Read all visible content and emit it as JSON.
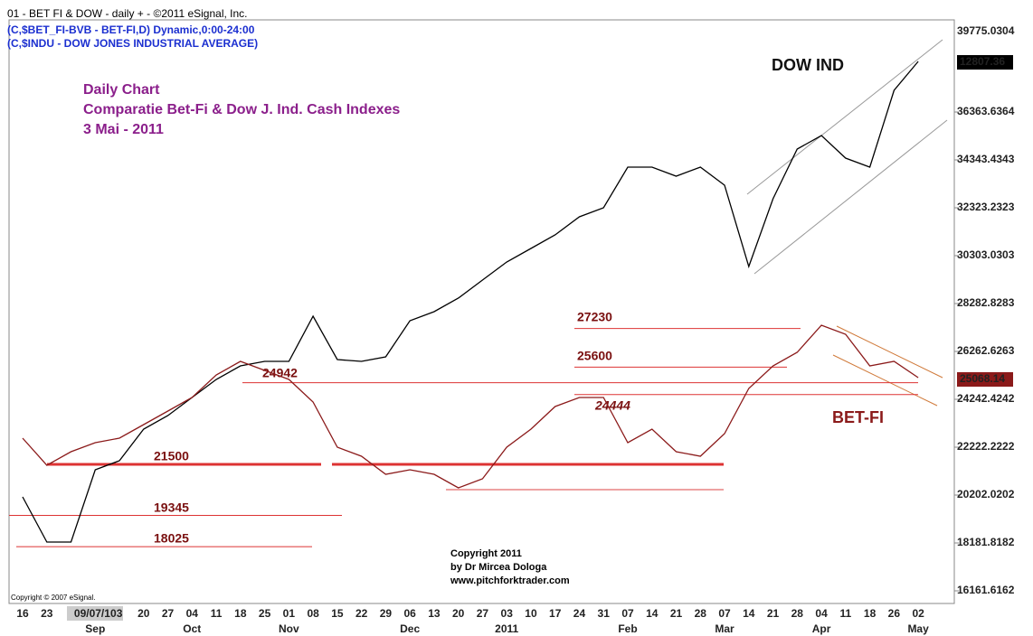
{
  "header": [
    "01 - BET FI & DOW -  daily + - ©2011 eSignal, Inc.",
    "(C,$BET_FI-BVB - BET-FI,D) Dynamic,0:00-24:00",
    "(C,$INDU - DOW JONES INDUSTRIAL AVERAGE)"
  ],
  "chart_data": {
    "type": "line",
    "title": "Daily Chart",
    "subtitle": [
      "Comparatie Bet-Fi & Dow J. Ind. Cash Indexes",
      "3 Mai - 2011"
    ],
    "categories": [
      "16",
      "23",
      null,
      "09/07/10",
      "3",
      "20",
      "27",
      "04",
      "11",
      "18",
      "25",
      "01",
      "08",
      "15",
      "22",
      "29",
      "06",
      "13",
      "20",
      "27",
      "03",
      "10",
      "17",
      "24",
      "31",
      "07",
      "14",
      "21",
      "28",
      "07",
      "14",
      "21",
      "28",
      "04",
      "11",
      "18",
      "26",
      "02"
    ],
    "month_labels": [
      null,
      null,
      null,
      "Sep",
      null,
      null,
      null,
      "Oct",
      null,
      null,
      null,
      "Nov",
      null,
      null,
      null,
      null,
      "Dec",
      null,
      null,
      null,
      "2011",
      null,
      null,
      null,
      null,
      "Feb",
      null,
      null,
      null,
      "Mar",
      null,
      null,
      null,
      "Apr",
      null,
      null,
      null,
      "May"
    ],
    "series": [
      {
        "name": "DOW IND",
        "color": "#000000",
        "values": [
          20126,
          18220,
          18220,
          21270,
          21651,
          22985,
          23556,
          24319,
          25081,
          25653,
          25843,
          25843,
          27749,
          25920,
          25843,
          26034,
          27559,
          27940,
          28511,
          29274,
          30036,
          30608,
          31180,
          31942,
          32323,
          34039,
          34039,
          33658,
          34039,
          33276,
          29846,
          32705,
          34801,
          35373,
          34420,
          34039,
          37279,
          38499
        ]
      },
      {
        "name": "BET-FI",
        "color": "#8b1a1a",
        "values": [
          22604,
          21460,
          22032,
          22413,
          22604,
          23175,
          23747,
          24319,
          25272,
          25843,
          25463,
          25081,
          24128,
          22222,
          21841,
          21079,
          21270,
          21079,
          20507,
          20888,
          22222,
          22985,
          23938,
          24319,
          24319,
          22413,
          22985,
          22032,
          21841,
          22794,
          24700,
          25653,
          26225,
          27368,
          26987,
          25653,
          25843,
          25158
        ]
      }
    ],
    "levels": [
      27230,
      25600,
      24942,
      24444,
      21500,
      19345,
      18025
    ],
    "last_values": [
      "12807.36",
      "25068.14"
    ],
    "top_label": "39775.0304",
    "ylim": [
      15628,
      40252
    ],
    "yticks": [
      16161.6162,
      18181.8182,
      20202.0202,
      22222.2222,
      24242.4242,
      26262.6263,
      28282.8283,
      30303.0303,
      32323.2323,
      34343.4343,
      36363.6364
    ],
    "grid": false
  },
  "footer": {
    "copyright": [
      "Copyright 2011",
      "by Dr Mircea Dologa",
      "www.pitchforktrader.com"
    ],
    "esignal": "Copyright © 2007 eSignal."
  }
}
